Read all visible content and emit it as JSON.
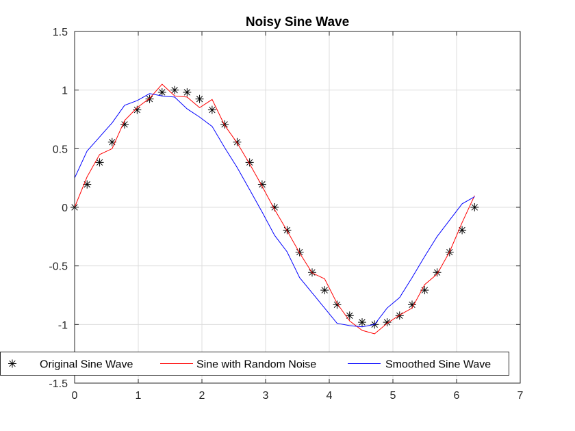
{
  "chart_data": {
    "type": "line",
    "title": "Noisy Sine Wave",
    "xlabel": "",
    "ylabel": "",
    "xlim": [
      0,
      7
    ],
    "ylim": [
      -1.5,
      1.5
    ],
    "xticks": [
      0,
      1,
      2,
      3,
      4,
      5,
      6,
      7
    ],
    "yticks": [
      -1.5,
      -1,
      -0.5,
      0,
      0.5,
      1,
      1.5
    ],
    "grid": true,
    "legend_position": "bottom",
    "legend_orientation": "horizontal",
    "series": [
      {
        "name": "Original Sine Wave",
        "style": "markers",
        "marker": "asterisk",
        "color": "#000000",
        "x": [
          0,
          0.196,
          0.393,
          0.589,
          0.785,
          0.982,
          1.178,
          1.374,
          1.571,
          1.767,
          1.963,
          2.16,
          2.356,
          2.553,
          2.749,
          2.945,
          3.142,
          3.338,
          3.534,
          3.731,
          3.927,
          4.123,
          4.32,
          4.516,
          4.712,
          4.909,
          5.105,
          5.301,
          5.498,
          5.694,
          5.89,
          6.087,
          6.283
        ],
        "y": [
          0,
          0.195,
          0.383,
          0.556,
          0.707,
          0.831,
          0.924,
          0.981,
          1,
          0.981,
          0.924,
          0.831,
          0.707,
          0.556,
          0.383,
          0.195,
          0,
          -0.195,
          -0.383,
          -0.556,
          -0.707,
          -0.831,
          -0.924,
          -0.981,
          -1,
          -0.981,
          -0.924,
          -0.831,
          -0.707,
          -0.556,
          -0.383,
          -0.195,
          0
        ]
      },
      {
        "name": "Sine with Random Noise",
        "style": "line",
        "color": "#ff0000",
        "x": [
          0,
          0.196,
          0.393,
          0.589,
          0.785,
          0.982,
          1.178,
          1.374,
          1.571,
          1.767,
          1.963,
          2.16,
          2.356,
          2.553,
          2.749,
          2.945,
          3.142,
          3.338,
          3.534,
          3.731,
          3.927,
          4.123,
          4.32,
          4.516,
          4.712,
          4.909,
          5.105,
          5.301,
          5.498,
          5.694,
          5.89,
          6.087,
          6.283
        ],
        "y": [
          0,
          0.26,
          0.45,
          0.5,
          0.74,
          0.85,
          0.93,
          1.05,
          0.95,
          0.94,
          0.85,
          0.92,
          0.7,
          0.55,
          0.37,
          0.18,
          -0.02,
          -0.2,
          -0.39,
          -0.56,
          -0.61,
          -0.82,
          -0.97,
          -1.05,
          -1.08,
          -0.99,
          -0.92,
          -0.86,
          -0.66,
          -0.57,
          -0.38,
          -0.13,
          0.1
        ]
      },
      {
        "name": "Smoothed Sine Wave",
        "style": "line",
        "color": "#0000ff",
        "x": [
          0,
          0.196,
          0.393,
          0.589,
          0.785,
          0.982,
          1.178,
          1.374,
          1.571,
          1.767,
          1.963,
          2.16,
          2.356,
          2.553,
          2.749,
          2.945,
          3.142,
          3.338,
          3.534,
          3.731,
          3.927,
          4.123,
          4.32,
          4.516,
          4.712,
          4.909,
          5.105,
          5.301,
          5.498,
          5.694,
          5.89,
          6.087,
          6.283
        ],
        "y": [
          0.25,
          0.48,
          0.6,
          0.72,
          0.87,
          0.91,
          0.97,
          0.95,
          0.94,
          0.84,
          0.77,
          0.69,
          0.51,
          0.34,
          0.15,
          -0.04,
          -0.24,
          -0.38,
          -0.6,
          -0.73,
          -0.86,
          -0.99,
          -1.01,
          -1.02,
          -1,
          -0.86,
          -0.77,
          -0.6,
          -0.42,
          -0.25,
          -0.11,
          0.03,
          0.09
        ]
      }
    ]
  }
}
